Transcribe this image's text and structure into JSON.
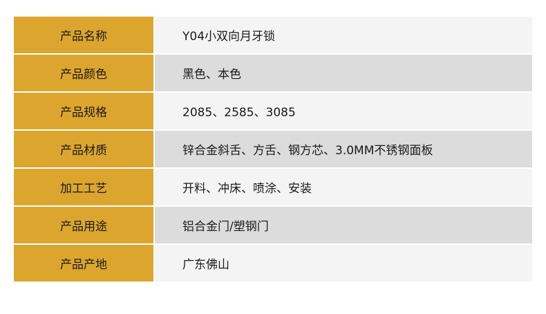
{
  "colors": {
    "label_bg": "#dca62e",
    "row_light": "#f4f4f4",
    "row_dark": "#dcdcdc"
  },
  "rows": [
    {
      "label": "产品名称",
      "value": "Y04小双向月牙锁"
    },
    {
      "label": "产品颜色",
      "value": "黑色、本色"
    },
    {
      "label": "产品规格",
      "value": "2085、2585、3085"
    },
    {
      "label": "产品材质",
      "value": "锌合金斜舌、方舌、钢方芯、3.0MM不锈钢面板"
    },
    {
      "label": "加工工艺",
      "value": "开料、冲床、喷涂、安装"
    },
    {
      "label": "产品用途",
      "value": "铝合金门/塑钢门"
    },
    {
      "label": "产品产地",
      "value": "广东佛山"
    }
  ]
}
